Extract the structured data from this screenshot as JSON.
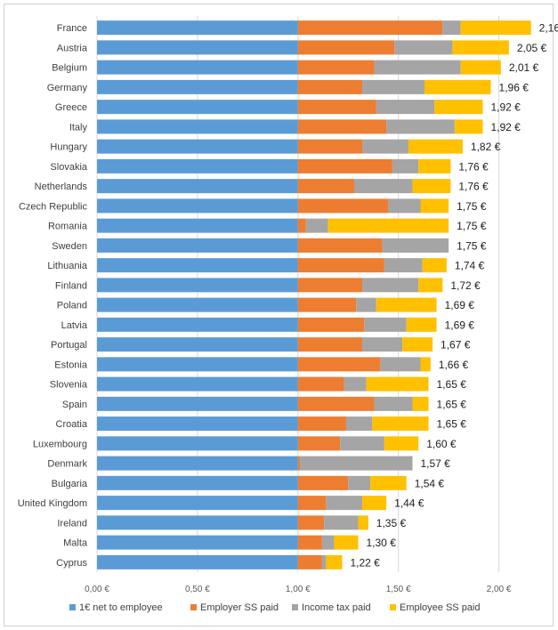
{
  "chart_data": {
    "type": "bar",
    "orientation": "horizontal",
    "stacked": true,
    "categories": [
      "France",
      "Austria",
      "Belgium",
      "Germany",
      "Greece",
      "Italy",
      "Hungary",
      "Slovakia",
      "Netherlands",
      "Czech Republic",
      "Romania",
      "Sweden",
      "Lithuania",
      "Finland",
      "Poland",
      "Latvia",
      "Portugal",
      "Estonia",
      "Slovenia",
      "Spain",
      "Croatia",
      "Luxembourg",
      "Denmark",
      "Bulgaria",
      "United Kingdom",
      "Ireland",
      "Malta",
      "Cyprus"
    ],
    "totals": [
      "2,16 €",
      "2,05 €",
      "2,01 €",
      "1,96 €",
      "1,92 €",
      "1,92 €",
      "1,82 €",
      "1,76 €",
      "1,76 €",
      "1,75 €",
      "1,75 €",
      "1,75 €",
      "1,74 €",
      "1,72 €",
      "1,69 €",
      "1,69 €",
      "1,67 €",
      "1,66 €",
      "1,65 €",
      "1,65 €",
      "1,65 €",
      "1,60 €",
      "1,57 €",
      "1,54 €",
      "1,44 €",
      "1,35 €",
      "1,30 €",
      "1,22 €"
    ],
    "series": [
      {
        "name": "1€ net to employee",
        "color": "#5B9BD5",
        "values": [
          1,
          1,
          1,
          1,
          1,
          1,
          1,
          1,
          1,
          1,
          1,
          1,
          1,
          1,
          1,
          1,
          1,
          1,
          1,
          1,
          1,
          1,
          1,
          1,
          1,
          1,
          1,
          1
        ]
      },
      {
        "name": "Employer SS paid",
        "color": "#ED7D31",
        "values": [
          0.72,
          0.48,
          0.38,
          0.32,
          0.39,
          0.44,
          0.32,
          0.47,
          0.28,
          0.45,
          0.04,
          0.42,
          0.43,
          0.32,
          0.29,
          0.33,
          0.32,
          0.41,
          0.23,
          0.38,
          0.24,
          0.21,
          0.01,
          0.25,
          0.14,
          0.13,
          0.12,
          0.12
        ]
      },
      {
        "name": "Income tax paid",
        "color": "#A5A5A5",
        "values": [
          0.09,
          0.29,
          0.43,
          0.31,
          0.29,
          0.34,
          0.23,
          0.13,
          0.29,
          0.16,
          0.11,
          0.33,
          0.19,
          0.28,
          0.1,
          0.21,
          0.2,
          0.2,
          0.11,
          0.19,
          0.13,
          0.22,
          0.56,
          0.11,
          0.18,
          0.17,
          0.06,
          0.02
        ]
      },
      {
        "name": "Employee SS paid",
        "color": "#FFC000",
        "values": [
          0.35,
          0.28,
          0.2,
          0.33,
          0.24,
          0.14,
          0.27,
          0.16,
          0.19,
          0.14,
          0.6,
          0.0,
          0.12,
          0.12,
          0.3,
          0.15,
          0.15,
          0.05,
          0.31,
          0.08,
          0.28,
          0.17,
          0.0,
          0.18,
          0.12,
          0.05,
          0.12,
          0.08
        ]
      }
    ],
    "x_ticks": [
      "0,00 €",
      "0,50 €",
      "1,00 €",
      "1,50 €",
      "2,00 €"
    ],
    "x_tick_values": [
      0,
      0.5,
      1.0,
      1.5,
      2.0
    ],
    "xlim": [
      0,
      2.25
    ],
    "grid": true,
    "legend_position": "bottom"
  }
}
